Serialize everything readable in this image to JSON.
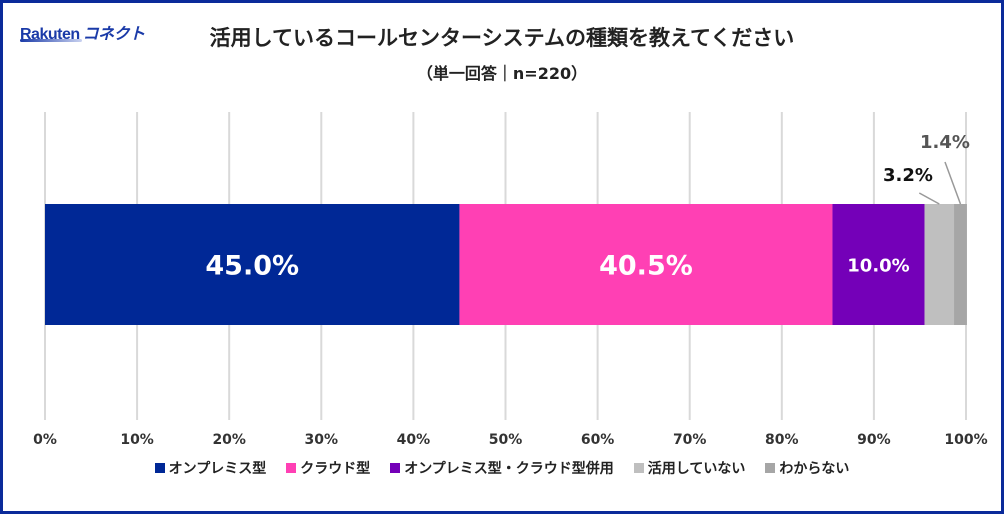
{
  "logo": {
    "brand": "Rakuten",
    "product": "コネクト"
  },
  "chart_data": {
    "type": "bar",
    "orientation": "horizontal-stacked-100",
    "title": "活用しているコールセンターシステムの種類を教えてください",
    "subtitle": "（単一回答｜n=220）",
    "xlim": [
      0,
      100
    ],
    "xticks": [
      "0%",
      "10%",
      "20%",
      "30%",
      "40%",
      "50%",
      "60%",
      "70%",
      "80%",
      "90%",
      "100%"
    ],
    "grid": true,
    "legend_position": "bottom",
    "series": [
      {
        "name": "オンプレミス型",
        "value": 45.0,
        "label": "45.0%",
        "color": "#002896"
      },
      {
        "name": "クラウド型",
        "value": 40.5,
        "label": "40.5%",
        "color": "#ff40b4"
      },
      {
        "name": "オンプレミス型・クラウド型併用",
        "value": 10.0,
        "label": "10.0%",
        "color": "#7400b8"
      },
      {
        "name": "活用していない",
        "value": 3.2,
        "label": "3.2%",
        "color": "#bfbfbf"
      },
      {
        "name": "わからない",
        "value": 1.4,
        "label": "1.4%",
        "color": "#a6a6a6"
      }
    ]
  }
}
